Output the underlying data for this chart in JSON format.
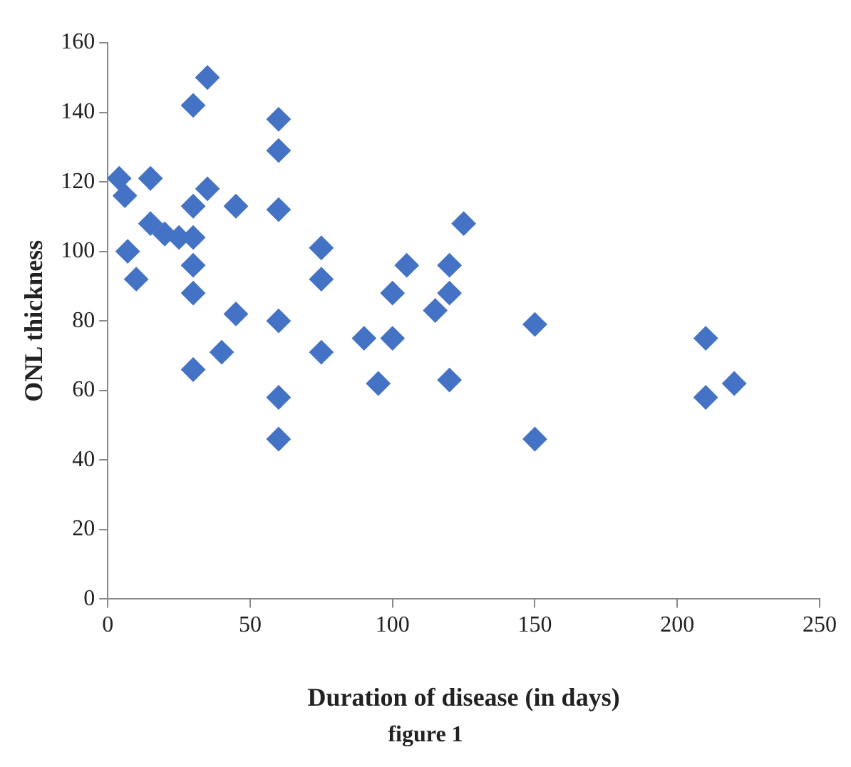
{
  "chart_data": {
    "type": "scatter",
    "xlabel": "Duration of disease (in days)",
    "ylabel": "ONL thickness",
    "annotations": [
      "figure 1"
    ],
    "x": [
      4,
      6,
      7,
      10,
      15,
      15,
      20,
      25,
      30,
      30,
      35,
      35,
      30,
      30,
      30,
      45,
      45,
      40,
      30,
      60,
      60,
      60,
      60,
      60,
      60,
      75,
      75,
      75,
      90,
      95,
      100,
      100,
      105,
      115,
      120,
      120,
      120,
      125,
      150,
      150,
      210,
      210,
      220
    ],
    "values": [
      121,
      116,
      100,
      92,
      121,
      108,
      105,
      104,
      104,
      142,
      150,
      118,
      113,
      96,
      88,
      113,
      82,
      71,
      66,
      138,
      129,
      112,
      80,
      58,
      46,
      101,
      92,
      71,
      75,
      62,
      88,
      75,
      96,
      83,
      96,
      88,
      63,
      108,
      79,
      46,
      75,
      58,
      62
    ],
    "color": "#4472c4",
    "marker": "diamond",
    "grid": false,
    "legend": false,
    "xlim": [
      0,
      250
    ],
    "xticks": [
      0,
      50,
      100,
      150,
      200,
      250
    ],
    "ylim": [
      0,
      160
    ],
    "yticks": [
      0,
      20,
      40,
      60,
      80,
      100,
      120,
      140,
      160
    ]
  }
}
